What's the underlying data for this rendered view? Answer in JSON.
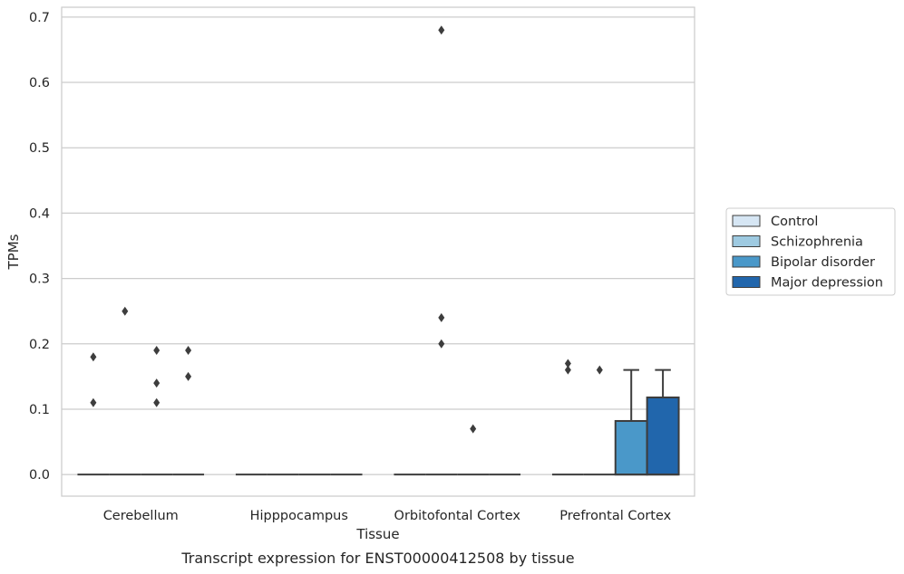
{
  "chart_data": {
    "type": "box",
    "title": "",
    "caption": "Transcript expression for ENST00000412508 by tissue",
    "xlabel": "Tissue",
    "ylabel": "TPMs",
    "ylim": [
      -0.033,
      0.715
    ],
    "yticks": [
      "0.0",
      "0.1",
      "0.2",
      "0.3",
      "0.4",
      "0.5",
      "0.6",
      "0.7"
    ],
    "grid": "horizontal",
    "legend_position": "right",
    "categories": [
      "Cerebellum",
      "Hipppocampus",
      "Orbitofontal Cortex",
      "Prefrontal Cortex"
    ],
    "series": [
      {
        "name": "Control",
        "color": "#d6e6f4",
        "boxes": [
          {
            "q1": 0,
            "median": 0,
            "q3": 0,
            "whisker_low": 0,
            "whisker_high": 0,
            "outliers": [
              0.18,
              0.11
            ]
          },
          {
            "q1": 0,
            "median": 0,
            "q3": 0,
            "whisker_low": 0,
            "whisker_high": 0,
            "outliers": []
          },
          {
            "q1": 0,
            "median": 0,
            "q3": 0,
            "whisker_low": 0,
            "whisker_high": 0,
            "outliers": []
          },
          {
            "q1": 0,
            "median": 0,
            "q3": 0,
            "whisker_low": 0,
            "whisker_high": 0,
            "outliers": [
              0.17,
              0.16
            ]
          }
        ]
      },
      {
        "name": "Schizophrenia",
        "color": "#9ecae1",
        "boxes": [
          {
            "q1": 0,
            "median": 0,
            "q3": 0,
            "whisker_low": 0,
            "whisker_high": 0,
            "outliers": [
              0.25
            ]
          },
          {
            "q1": 0,
            "median": 0,
            "q3": 0,
            "whisker_low": 0,
            "whisker_high": 0,
            "outliers": []
          },
          {
            "q1": 0,
            "median": 0,
            "q3": 0,
            "whisker_low": 0,
            "whisker_high": 0,
            "outliers": [
              0.68,
              0.24,
              0.2
            ]
          },
          {
            "q1": 0,
            "median": 0,
            "q3": 0,
            "whisker_low": 0,
            "whisker_high": 0,
            "outliers": [
              0.16
            ]
          }
        ]
      },
      {
        "name": "Bipolar disorder",
        "color": "#4a98c9",
        "boxes": [
          {
            "q1": 0,
            "median": 0,
            "q3": 0,
            "whisker_low": 0,
            "whisker_high": 0,
            "outliers": [
              0.19,
              0.14,
              0.11
            ]
          },
          {
            "q1": 0,
            "median": 0,
            "q3": 0,
            "whisker_low": 0,
            "whisker_high": 0,
            "outliers": []
          },
          {
            "q1": 0,
            "median": 0,
            "q3": 0,
            "whisker_low": 0,
            "whisker_high": 0,
            "outliers": [
              0.07
            ]
          },
          {
            "q1": 0,
            "median": 0,
            "q3": 0.082,
            "whisker_low": 0,
            "whisker_high": 0.16,
            "outliers": []
          }
        ]
      },
      {
        "name": "Major depression",
        "color": "#2166ac",
        "boxes": [
          {
            "q1": 0,
            "median": 0,
            "q3": 0,
            "whisker_low": 0,
            "whisker_high": 0,
            "outliers": [
              0.19,
              0.15
            ]
          },
          {
            "q1": 0,
            "median": 0,
            "q3": 0,
            "whisker_low": 0,
            "whisker_high": 0,
            "outliers": []
          },
          {
            "q1": 0,
            "median": 0,
            "q3": 0,
            "whisker_low": 0,
            "whisker_high": 0,
            "outliers": []
          },
          {
            "q1": 0,
            "median": 0,
            "q3": 0.118,
            "whisker_low": 0,
            "whisker_high": 0.16,
            "outliers": []
          }
        ]
      }
    ]
  }
}
